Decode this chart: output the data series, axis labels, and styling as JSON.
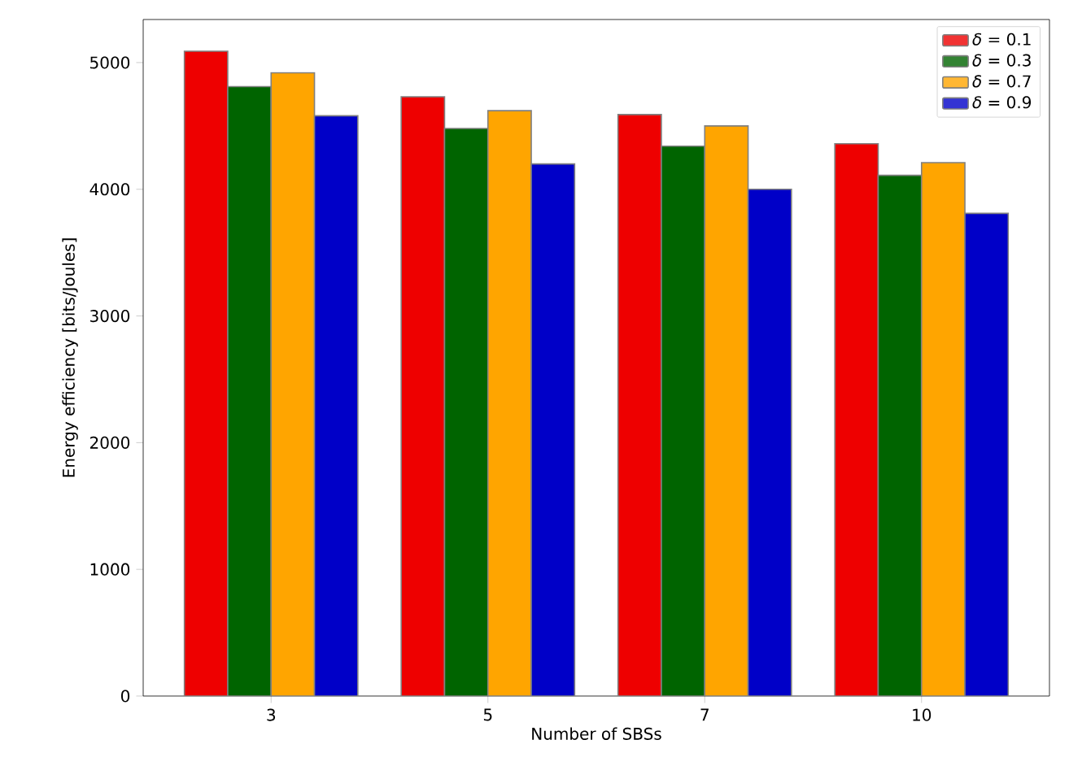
{
  "chart_data": {
    "type": "bar",
    "xlabel": "Number of SBSs",
    "ylabel": "Energy efficiency [bits/Joules]",
    "categories": [
      "3",
      "5",
      "7",
      "10"
    ],
    "series": [
      {
        "name": "*δ* = 0.1",
        "color": "#ee0000",
        "values": [
          5090,
          4730,
          4590,
          4360
        ]
      },
      {
        "name": "*δ* = 0.3",
        "color": "#006400",
        "values": [
          4810,
          4480,
          4340,
          4110
        ]
      },
      {
        "name": "*δ* = 0.7",
        "color": "#ffa500",
        "values": [
          4920,
          4620,
          4500,
          4210
        ]
      },
      {
        "name": "*δ* = 0.9",
        "color": "#0000c8",
        "values": [
          4580,
          4200,
          4000,
          3810
        ]
      }
    ],
    "ylim": [
      0,
      5340
    ],
    "yticks": [
      0,
      1000,
      2000,
      3000,
      4000,
      5000
    ],
    "legend": "top right",
    "grid": false
  }
}
